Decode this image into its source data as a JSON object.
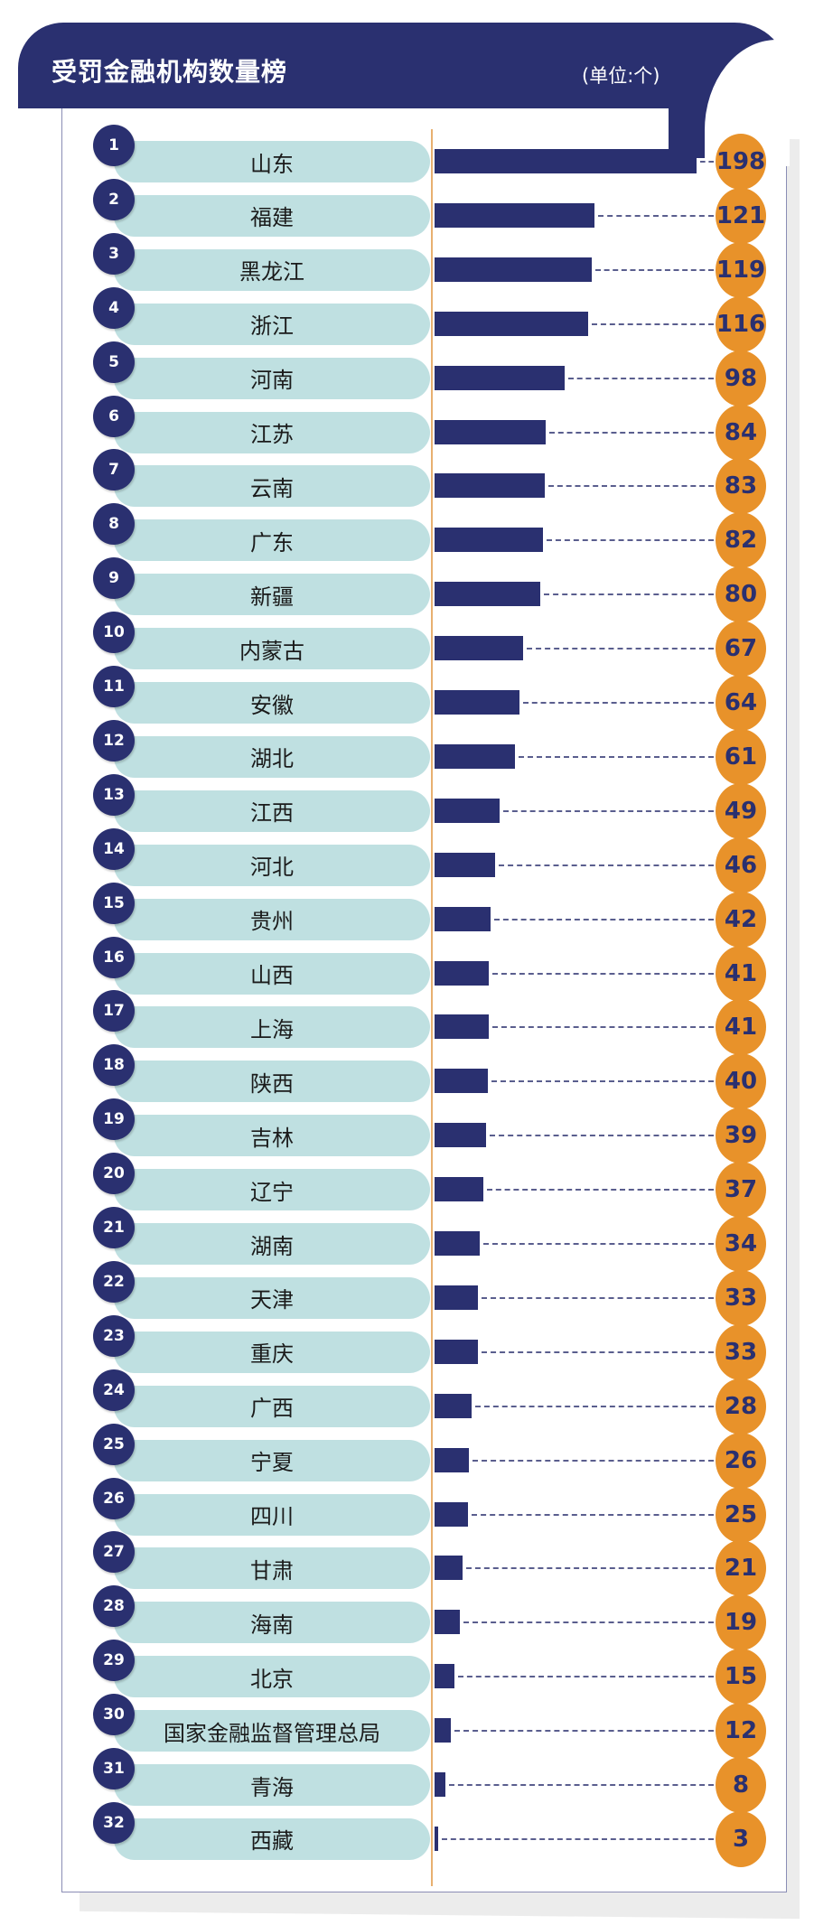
{
  "chart_data": {
    "type": "bar",
    "orientation": "horizontal",
    "title": "受罚金融机构数量榜",
    "unit_label": "(单位:个)",
    "colors": {
      "bar": "#2a3070",
      "value_badge": "#e8922a",
      "label_pill": "#bfe0e1",
      "header": "#2a3070"
    },
    "categories": [
      "山东",
      "福建",
      "黑龙江",
      "浙江",
      "河南",
      "江苏",
      "云南",
      "广东",
      "新疆",
      "内蒙古",
      "安徽",
      "湖北",
      "江西",
      "河北",
      "贵州",
      "山西",
      "上海",
      "陕西",
      "吉林",
      "辽宁",
      "湖南",
      "天津",
      "重庆",
      "广西",
      "宁夏",
      "四川",
      "甘肃",
      "海南",
      "北京",
      "国家金融监督管理总局",
      "青海",
      "西藏"
    ],
    "ranks": [
      "1",
      "2",
      "3",
      "4",
      "5",
      "6",
      "7",
      "8",
      "9",
      "10",
      "11",
      "12",
      "13",
      "14",
      "15",
      "16",
      "17",
      "18",
      "19",
      "20",
      "21",
      "22",
      "23",
      "24",
      "25",
      "26",
      "27",
      "28",
      "29",
      "30",
      "31",
      "32"
    ],
    "values": [
      198,
      121,
      119,
      116,
      98,
      84,
      83,
      82,
      80,
      67,
      64,
      61,
      49,
      46,
      42,
      41,
      41,
      40,
      39,
      37,
      34,
      33,
      33,
      28,
      26,
      25,
      21,
      19,
      15,
      12,
      8,
      3
    ],
    "xlim": [
      0,
      198
    ]
  }
}
